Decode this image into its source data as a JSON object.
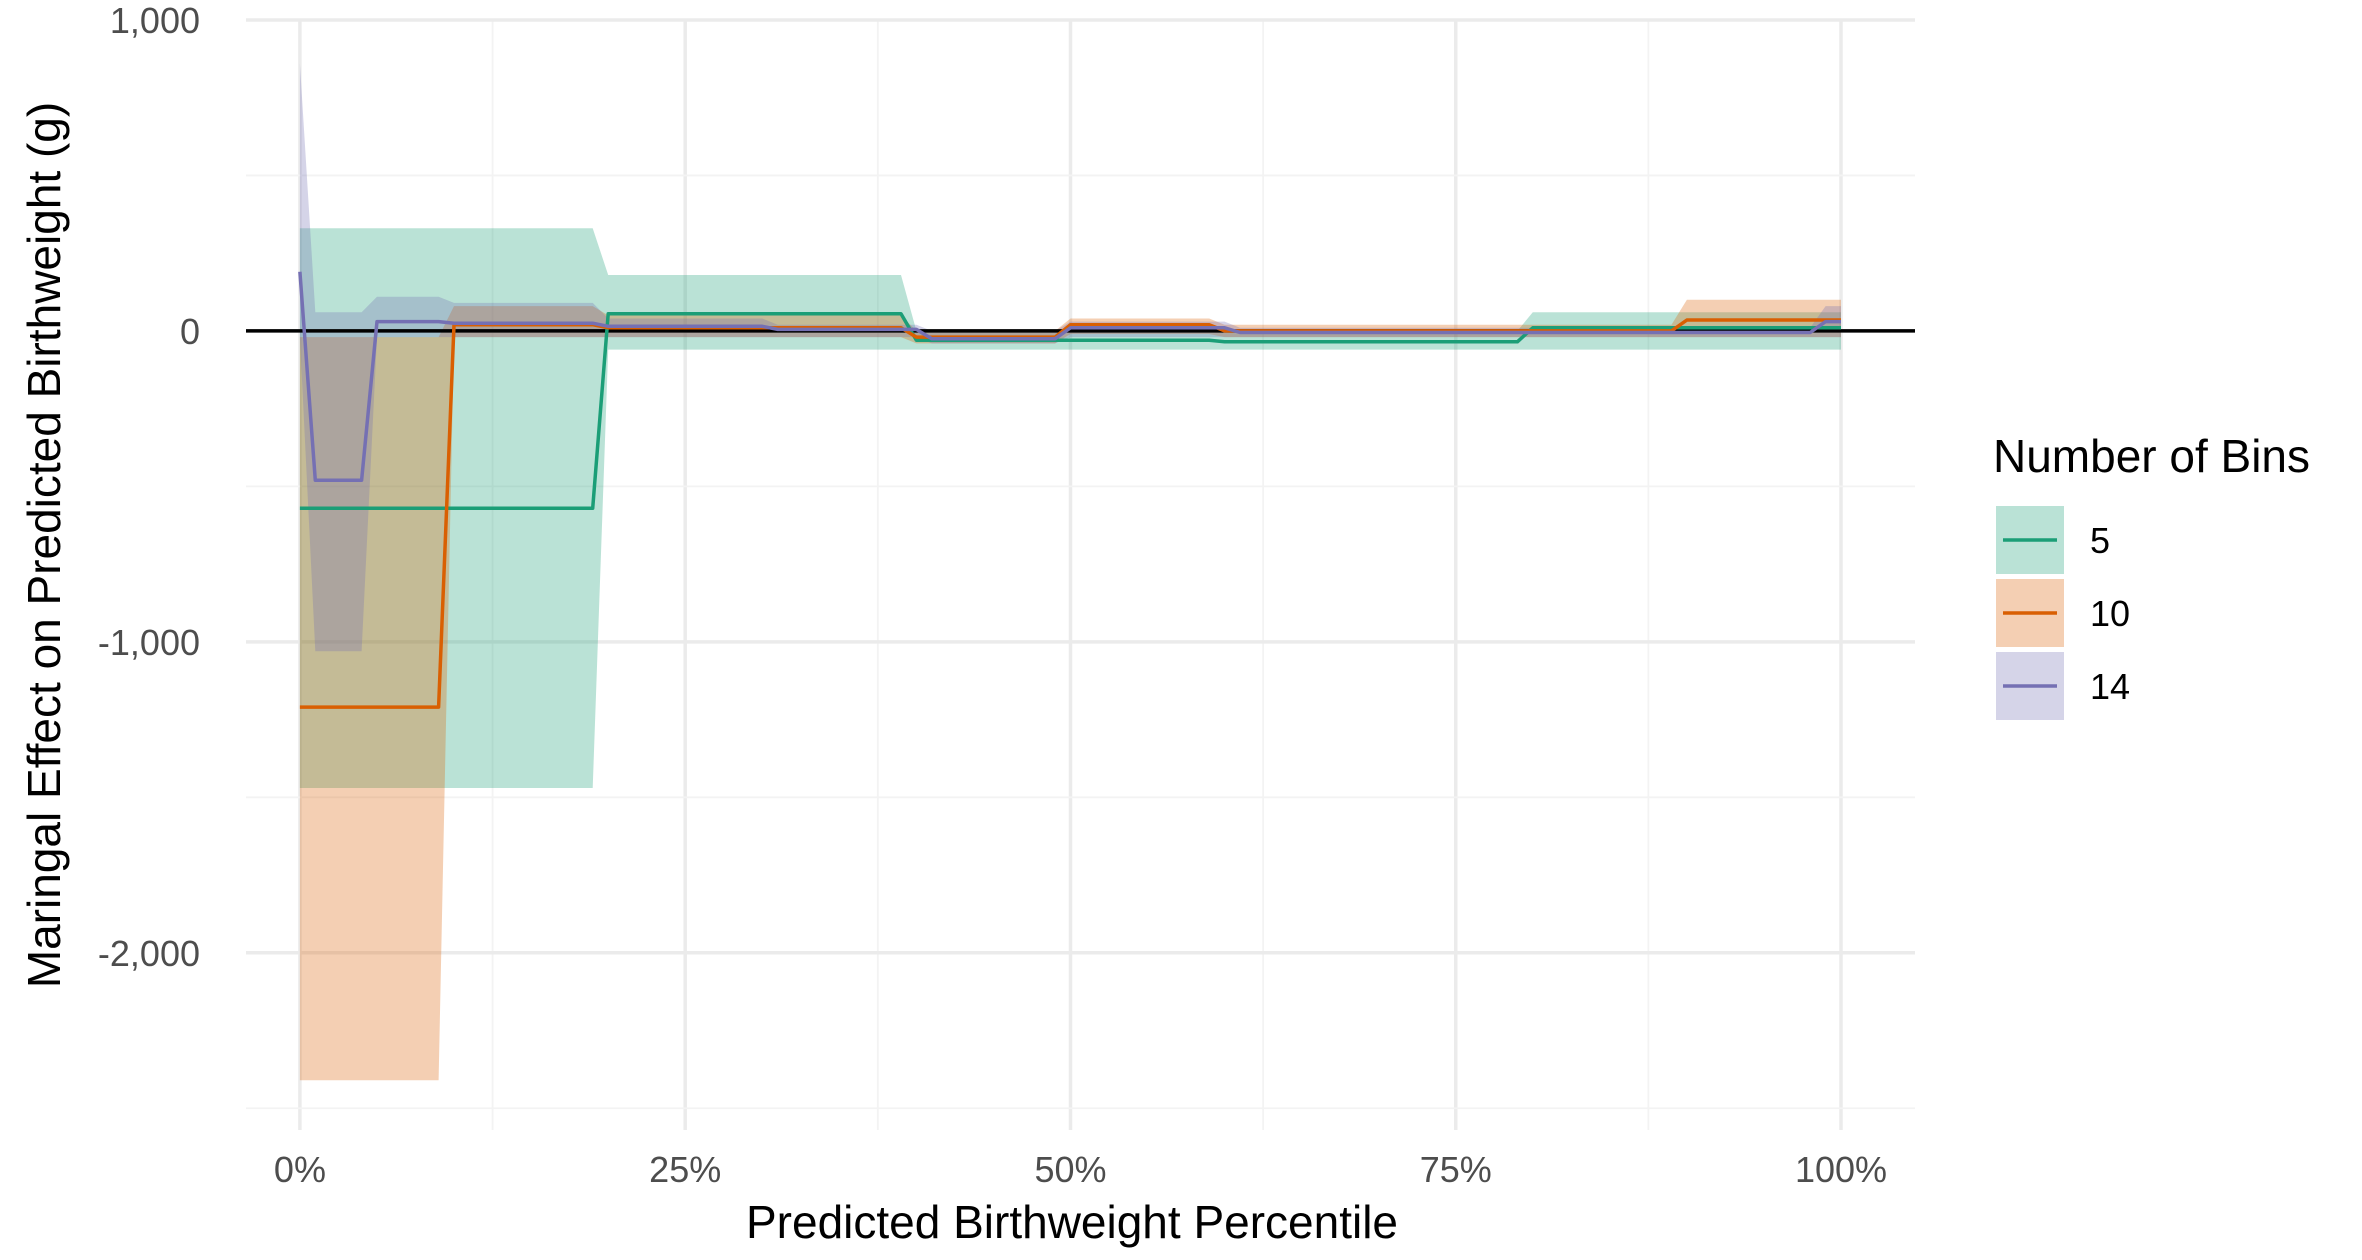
{
  "chart_data": {
    "type": "line",
    "xlabel": "Predicted Birthweight Percentile",
    "ylabel": "Maringal Effect on Predicted Birthweight (g)",
    "xlim": [
      -0.035,
      1.048
    ],
    "ylim": [
      -2570,
      1000
    ],
    "x_ticks": [
      {
        "value": 0,
        "label": "0%"
      },
      {
        "value": 0.25,
        "label": "25%"
      },
      {
        "value": 0.5,
        "label": "50%"
      },
      {
        "value": 0.75,
        "label": "75%"
      },
      {
        "value": 1,
        "label": "100%"
      }
    ],
    "y_ticks": [
      {
        "value": 1000,
        "label": "1,000"
      },
      {
        "value": 0,
        "label": "0"
      },
      {
        "value": -1000,
        "label": "-1,000"
      },
      {
        "value": -2000,
        "label": "-2,000"
      }
    ],
    "grid": true,
    "reference_line": 0,
    "legend": {
      "title": "Number of Bins",
      "position": "right"
    },
    "series": [
      {
        "name": "5",
        "line_color": "#1b9e77",
        "band_color": "#1b9e77",
        "x": [
          0,
          0.19,
          0.2,
          0.39,
          0.4,
          0.59,
          0.6,
          0.79,
          0.8,
          1.0
        ],
        "y": [
          -570,
          -570,
          55,
          55,
          -30,
          -30,
          -35,
          -35,
          10,
          10
        ],
        "lower": [
          -1470,
          -1470,
          -60,
          -60,
          -60,
          -60,
          -60,
          -60,
          -60,
          -60
        ],
        "upper": [
          330,
          330,
          180,
          180,
          0,
          0,
          0,
          0,
          60,
          60
        ]
      },
      {
        "name": "10",
        "line_color": "#d95f02",
        "band_color": "#d95f02",
        "x": [
          0,
          0.09,
          0.1,
          0.19,
          0.2,
          0.39,
          0.4,
          0.49,
          0.5,
          0.59,
          0.6,
          0.89,
          0.9,
          1.0
        ],
        "y": [
          -1210,
          -1210,
          20,
          20,
          10,
          10,
          -20,
          -20,
          20,
          20,
          0,
          0,
          35,
          35
        ],
        "lower": [
          -2410,
          -2410,
          -20,
          -20,
          -20,
          -20,
          -40,
          -40,
          -10,
          -10,
          -20,
          -20,
          -20,
          -20
        ],
        "upper": [
          -20,
          -20,
          80,
          80,
          50,
          50,
          0,
          0,
          40,
          40,
          20,
          20,
          100,
          100
        ]
      },
      {
        "name": "14",
        "line_color": "#7570b3",
        "band_color": "#7570b3",
        "x": [
          0,
          0.01,
          0.04,
          0.05,
          0.09,
          0.1,
          0.19,
          0.2,
          0.3,
          0.31,
          0.4,
          0.41,
          0.49,
          0.5,
          0.6,
          0.61,
          0.98,
          0.99,
          1.0
        ],
        "y": [
          190,
          -480,
          -480,
          30,
          30,
          25,
          25,
          15,
          15,
          5,
          5,
          -25,
          -25,
          10,
          10,
          -5,
          -5,
          30,
          30
        ],
        "lower": [
          -20,
          -1030,
          -1030,
          -20,
          -20,
          -20,
          -20,
          -20,
          -20,
          -20,
          -20,
          -40,
          -40,
          -20,
          -20,
          -20,
          -20,
          -20,
          -20
        ],
        "upper": [
          860,
          60,
          60,
          110,
          110,
          90,
          90,
          40,
          40,
          20,
          20,
          0,
          0,
          30,
          30,
          10,
          10,
          80,
          80
        ]
      }
    ]
  }
}
